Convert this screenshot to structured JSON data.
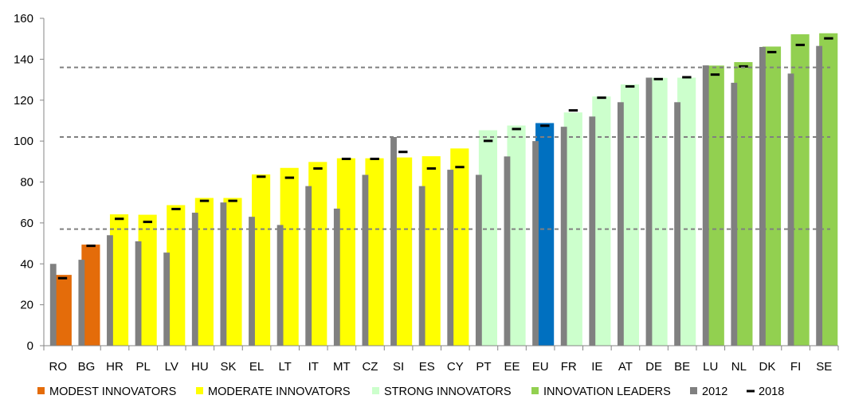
{
  "chart_data": {
    "type": "bar",
    "categories": [
      "RO",
      "BG",
      "HR",
      "PL",
      "LV",
      "HU",
      "SK",
      "EL",
      "LT",
      "IT",
      "MT",
      "CZ",
      "SI",
      "ES",
      "CY",
      "PT",
      "EE",
      "EU",
      "FR",
      "IE",
      "AT",
      "DE",
      "BE",
      "LU",
      "NL",
      "DK",
      "FI",
      "SE"
    ],
    "groups": [
      "modest",
      "modest",
      "moderate",
      "moderate",
      "moderate",
      "moderate",
      "moderate",
      "moderate",
      "moderate",
      "moderate",
      "moderate",
      "moderate",
      "moderate",
      "moderate",
      "moderate",
      "strong",
      "strong",
      "eu",
      "strong",
      "strong",
      "strong",
      "strong",
      "strong",
      "leader",
      "leader",
      "leader",
      "leader",
      "leader"
    ],
    "series": [
      {
        "name": "current",
        "values": [
          34.6,
          49.4,
          64.2,
          64.0,
          68.7,
          72.2,
          72.2,
          83.7,
          86.9,
          89.8,
          91.6,
          91.6,
          92.0,
          92.6,
          96.4,
          105.3,
          107.6,
          108.8,
          114.0,
          121.8,
          127.7,
          130.9,
          131.0,
          136.9,
          138.6,
          146.2,
          152.2,
          152.7
        ]
      },
      {
        "name": "2012",
        "values": [
          40,
          42,
          54,
          51,
          45.5,
          65,
          70,
          63,
          59,
          78,
          67,
          83.5,
          102,
          78,
          86,
          83.5,
          92.5,
          100,
          107,
          112,
          119,
          131,
          119,
          137,
          128.5,
          146,
          133,
          146.5
        ]
      },
      {
        "name": "2018",
        "values": [
          33,
          48.8,
          62,
          60.5,
          66.8,
          70.8,
          70.8,
          82.6,
          82.1,
          86.6,
          91.3,
          91.3,
          94.7,
          86.6,
          87.3,
          100.1,
          105.9,
          107.5,
          115.0,
          121.2,
          126.7,
          130.3,
          131.2,
          132.5,
          136.5,
          143.5,
          147.0,
          150.2
        ]
      }
    ],
    "reference_lines": [
      57,
      102,
      136
    ],
    "ylim": [
      0,
      160
    ],
    "yticks": [
      0,
      20,
      40,
      60,
      80,
      100,
      120,
      140,
      160
    ],
    "colors": {
      "modest": "#E46C0A",
      "moderate": "#FFFF00",
      "strong": "#CCFFCC",
      "leader": "#92D050",
      "eu": "#0070C0",
      "bar2012": "#808080",
      "marker2018": "#000000",
      "reference": "#808080"
    },
    "legend": [
      {
        "key": "modest",
        "label": "MODEST INNOVATORS"
      },
      {
        "key": "moderate",
        "label": "MODERATE INNOVATORS"
      },
      {
        "key": "strong",
        "label": "STRONG INNOVATORS"
      },
      {
        "key": "leader",
        "label": "INNOVATION LEADERS"
      },
      {
        "key": "bar2012",
        "label": "2012"
      },
      {
        "key": "marker2018",
        "label": "2018"
      }
    ],
    "legend_position": "bottom",
    "grid": false
  }
}
